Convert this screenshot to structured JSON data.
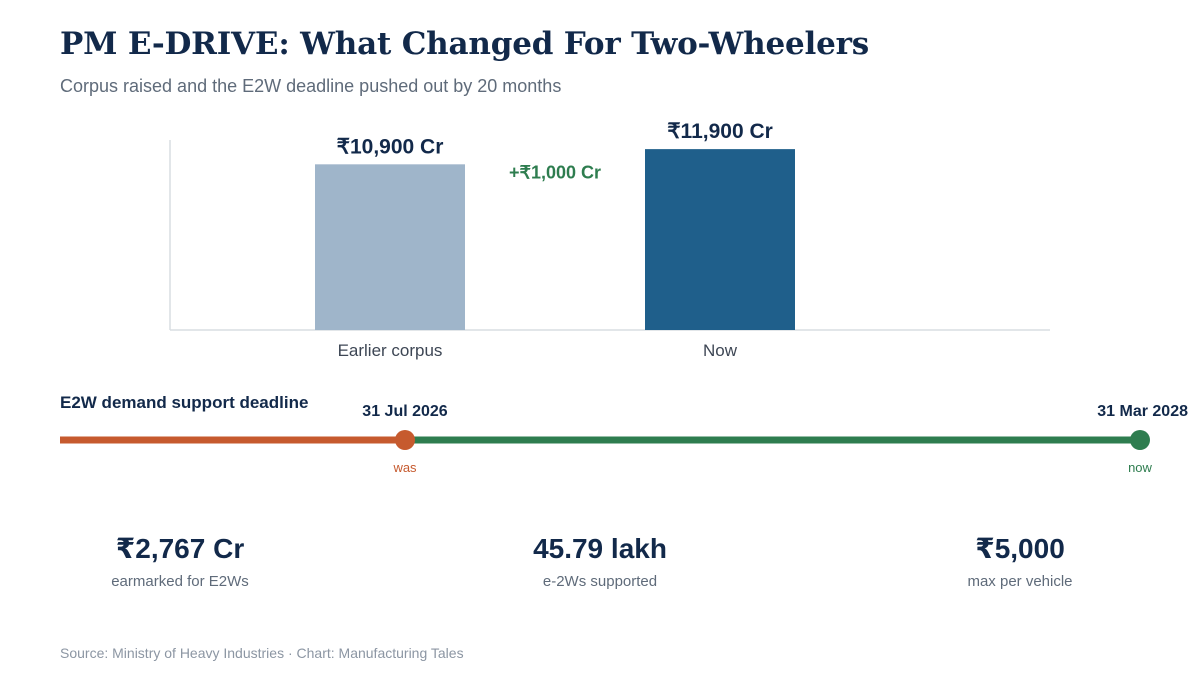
{
  "header": {
    "title": "PM E-DRIVE: What Changed For Two-Wheelers",
    "subtitle": "Corpus raised and the E2W deadline pushed out by 20 months"
  },
  "chart_data": [
    {
      "type": "bar",
      "categories": [
        "Earlier corpus",
        "Now"
      ],
      "values": [
        10900,
        11900
      ],
      "value_labels": [
        "₹10,900 Cr",
        "₹11,900 Cr"
      ],
      "unit": "₹ Cr",
      "colors": [
        "#9fb5ca",
        "#1f5f8b"
      ],
      "annotation": "+₹1,000 Cr",
      "annotation_color": "#2e7d4f",
      "ylim": [
        0,
        12500
      ],
      "grid": false,
      "axis_color": "#d9dde2"
    },
    {
      "type": "timeline",
      "title": "E2W demand support deadline",
      "points": [
        {
          "date": "31 Jul 2026",
          "tag": "was",
          "color": "#c65a2e"
        },
        {
          "date": "31 Mar 2028",
          "tag": "now",
          "color": "#2e7d4f"
        }
      ],
      "line_colors": {
        "before": "#c65a2e",
        "extension": "#2e7d4f"
      }
    }
  ],
  "stats": [
    {
      "value": "₹2,767 Cr",
      "label": "earmarked for E2Ws"
    },
    {
      "value": "45.79 lakh",
      "label": "e-2Ws supported"
    },
    {
      "value": "₹5,000",
      "label": "max per vehicle"
    }
  ],
  "footer": {
    "source": "Source: Ministry of Heavy Industries · Chart: Manufacturing Tales"
  }
}
